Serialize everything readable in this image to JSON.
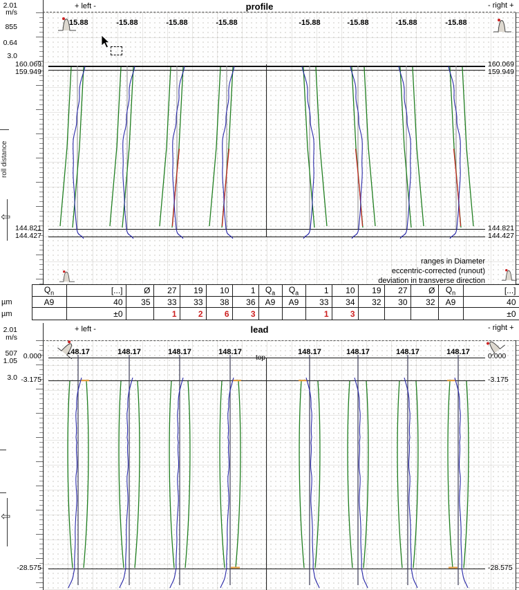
{
  "colors": {
    "tolerance_green": "#1e7d1e",
    "measure_blue": "#2727a8",
    "error_red": "#cc2020",
    "marker_orange": "#e09b40",
    "centerline_grey": "#909090",
    "centerline_dark": "#3a3a55"
  },
  "profile": {
    "title": "profile",
    "direction_left": "+ left -",
    "direction_right": "- right +",
    "axis_labels": [
      "2.01",
      "m/s",
      "855",
      "0.64",
      "3.0"
    ],
    "axis_side_label": "roll distance",
    "track_header": "-15.88",
    "upper_value_1": "160.069",
    "upper_value_2": "159.949",
    "lower_value_1": "144.821",
    "lower_value_2": "144.427",
    "notes": [
      "ranges in Diameter",
      "eccentric-corrected (runout)",
      "deviation in transverse direction"
    ]
  },
  "table": {
    "unit": "µm",
    "columns": [
      {
        "label": "Q",
        "sub": "n"
      },
      {
        "label": "[...]"
      },
      {
        "label": "Ø"
      },
      {
        "label": "27"
      },
      {
        "label": "19"
      },
      {
        "label": "10"
      },
      {
        "label": "1"
      },
      {
        "label": "Q",
        "sub": "a"
      },
      {
        "label": "Q",
        "sub": "a"
      },
      {
        "label": "1"
      },
      {
        "label": "10"
      },
      {
        "label": "19"
      },
      {
        "label": "27"
      },
      {
        "label": "Ø"
      },
      {
        "label": "Q",
        "sub": "n"
      },
      {
        "label": "[...]"
      }
    ],
    "rows": [
      {
        "unit": "µm",
        "cells": [
          "A9",
          "40",
          "35",
          "33",
          "33",
          "38",
          "36",
          "A9",
          "A9",
          "33",
          "34",
          "32",
          "30",
          "32",
          "A9",
          "40"
        ],
        "red": []
      },
      {
        "unit": "µm",
        "cells": [
          "",
          "±0",
          "",
          "1",
          "2",
          "6",
          "3",
          "",
          "",
          "1",
          "3",
          "",
          "",
          "",
          "",
          "±0"
        ],
        "red": [
          3,
          4,
          5,
          6,
          9,
          10
        ]
      }
    ]
  },
  "lead": {
    "title": "lead",
    "direction_left": "+ left -",
    "direction_right": "- right +",
    "axis_labels": [
      "2.01",
      "m/s",
      "507",
      "1.05",
      "3.0"
    ],
    "top_marker": "top",
    "track_header": "148.17",
    "line_value_1": "0.000",
    "line_value_2": "-3.175",
    "line_value_3": "-28.575"
  },
  "chart_data": [
    {
      "type": "line",
      "name": "profile",
      "tracks": 8,
      "track_header_value": -15.88,
      "reference_lines": [
        160.069,
        159.949,
        144.821,
        144.427
      ],
      "series_per_track": [
        "tolerance-band-green",
        "measured-curve-blue",
        "out-of-tolerance-red"
      ],
      "orientation": "vertical tracks, 4 left flanks + 4 right flanks mirrored about center divider",
      "notes": [
        "ranges in Diameter",
        "eccentric-corrected (runout)",
        "deviation in transverse direction"
      ]
    },
    {
      "type": "line",
      "name": "lead",
      "tracks": 8,
      "track_header_value": 148.17,
      "reference_lines": [
        0.0,
        -3.175,
        -28.575
      ],
      "series_per_track": [
        "tolerance-band-green",
        "measured-curve-blue",
        "marker-orange"
      ],
      "top_label": "top",
      "orientation": "vertical tracks, 4 left flanks + 4 right flanks mirrored about center divider"
    }
  ]
}
